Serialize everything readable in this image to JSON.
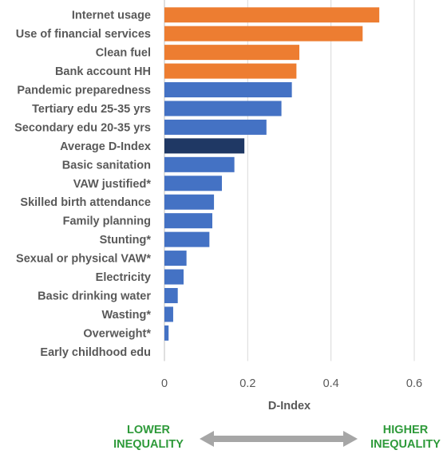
{
  "chart_data": {
    "type": "bar",
    "orientation": "horizontal",
    "categories": [
      "Internet usage",
      "Use of financial services",
      "Clean fuel",
      "Bank account HH",
      "Pandemic preparedness",
      "Tertiary edu 25-35 yrs",
      "Secondary edu 20-35 yrs",
      "Average D-Index",
      "Basic sanitation",
      "VAW justified*",
      "Skilled birth attendance",
      "Family planning",
      "Stunting*",
      "Sexual or physical VAW*",
      "Electricity",
      "Basic drinking water",
      "Wasting*",
      "Overweight*",
      "Early childhood edu"
    ],
    "values": [
      0.516,
      0.476,
      0.324,
      0.317,
      0.306,
      0.281,
      0.245,
      0.192,
      0.168,
      0.138,
      0.119,
      0.115,
      0.108,
      0.053,
      0.046,
      0.032,
      0.021,
      0.01,
      0.0
    ],
    "colors": [
      "#ed7d31",
      "#ed7d31",
      "#ed7d31",
      "#ed7d31",
      "#4472c4",
      "#4472c4",
      "#4472c4",
      "#1f3864",
      "#4472c4",
      "#4472c4",
      "#4472c4",
      "#4472c4",
      "#4472c4",
      "#4472c4",
      "#4472c4",
      "#4472c4",
      "#4472c4",
      "#4472c4",
      "#4472c4"
    ],
    "xlim": [
      0,
      0.6
    ],
    "xticks": [
      "0",
      "0.2",
      "0.4",
      "0.6"
    ],
    "xtick_values": [
      0,
      0.2,
      0.4,
      0.6
    ],
    "xlabel": "D-Index",
    "grid": true,
    "legend": "none"
  },
  "annotations": {
    "lower": "LOWER INEQUALITY",
    "higher": "HIGHER INEQUALITY",
    "lower_lines": [
      "LOWER",
      "INEQUALITY"
    ],
    "higher_lines": [
      "HIGHER",
      "INEQUALITY"
    ],
    "arrow_color": "#a6a6a6",
    "text_color": "#2e9a3a"
  }
}
